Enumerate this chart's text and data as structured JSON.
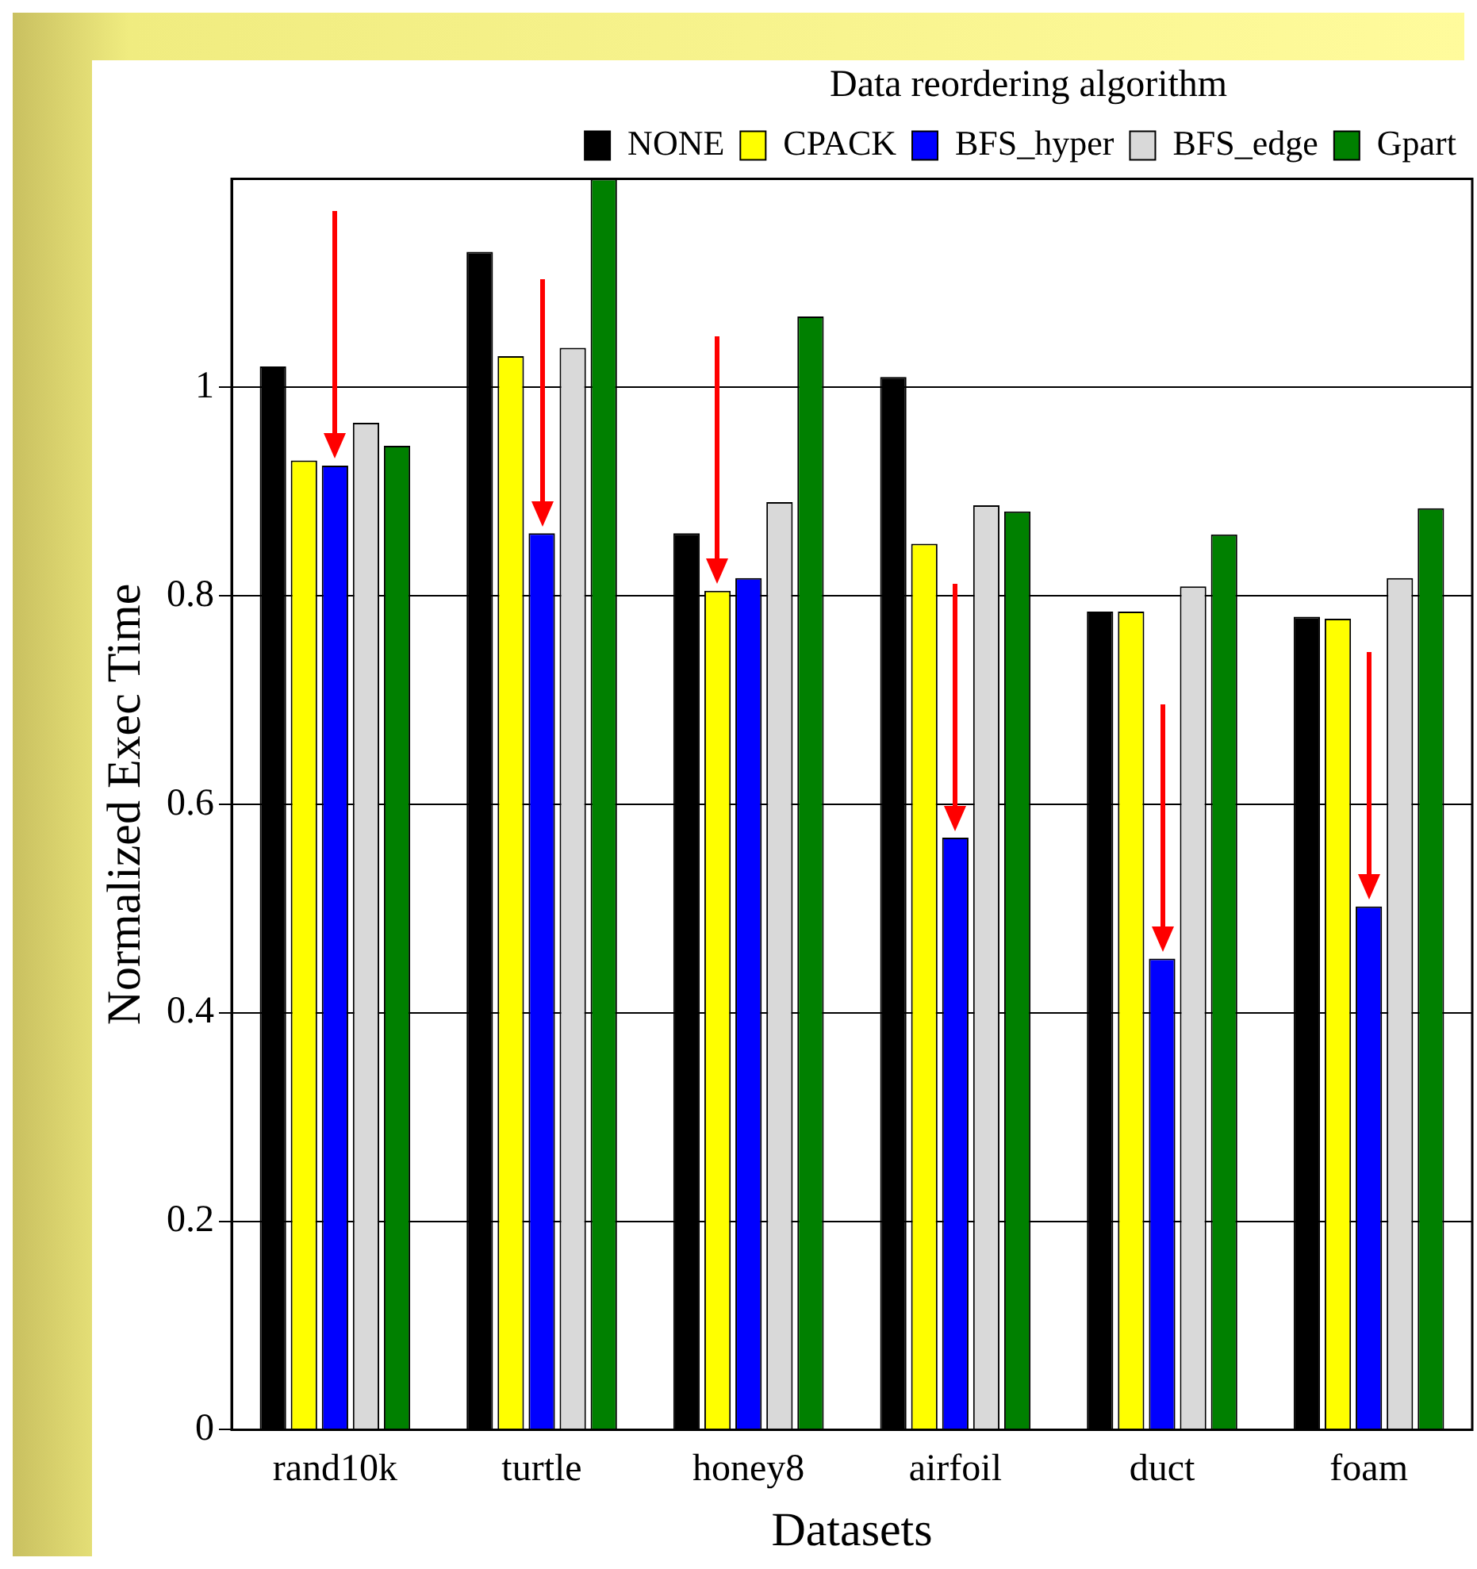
{
  "chart_data": {
    "type": "bar",
    "xlabel": "Datasets",
    "ylabel": "Normalized Exec Time",
    "legend_title": "Data reordering algorithm",
    "categories": [
      "rand10k",
      "turtle",
      "honey8",
      "airfoil",
      "duct",
      "foam"
    ],
    "series": [
      {
        "name": "NONE",
        "color": "#000000",
        "values": [
          1.02,
          1.13,
          0.86,
          1.01,
          0.785,
          0.78
        ]
      },
      {
        "name": "CPACK",
        "color": "#ffff00",
        "values": [
          0.93,
          1.03,
          0.805,
          0.85,
          0.785,
          0.778
        ]
      },
      {
        "name": "BFS_hyper",
        "color": "#0000ff",
        "values": [
          0.925,
          0.86,
          0.817,
          0.568,
          0.452,
          0.502
        ]
      },
      {
        "name": "BFS_edge",
        "color": "#d9d9d9",
        "values": [
          0.966,
          1.038,
          0.89,
          0.887,
          0.809,
          0.817
        ]
      },
      {
        "name": "Gpart",
        "color": "#008000",
        "values": [
          0.944,
          1.2,
          1.068,
          0.881,
          0.859,
          0.884
        ]
      }
    ],
    "ylim": [
      0,
      1.2
    ],
    "yticks": [
      0,
      0.2,
      0.4,
      0.6,
      0.8,
      1
    ],
    "grid": "y",
    "legend": "top right"
  }
}
